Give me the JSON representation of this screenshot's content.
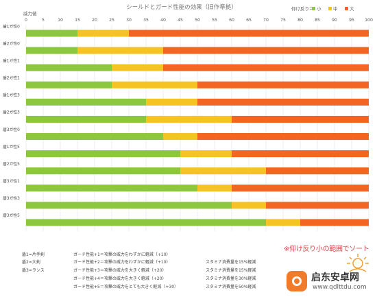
{
  "chart_data": {
    "type": "stacked-bar",
    "title": "シールドとガード性能の効果（旧作準拠）",
    "ylabel": "威力値",
    "xlim": [
      0,
      100
    ],
    "xticks": [
      0,
      5,
      10,
      15,
      20,
      25,
      30,
      35,
      40,
      45,
      50,
      55,
      60,
      65,
      70,
      75,
      80,
      85,
      90,
      95,
      100
    ],
    "grid": true,
    "legend_position": "top-right",
    "legend": {
      "title": "仰け反り＝",
      "items": [
        {
          "label": "小",
          "color": "#8dc63f"
        },
        {
          "label": "中",
          "color": "#f6c324"
        },
        {
          "label": "大",
          "color": "#f26522"
        }
      ]
    },
    "categories": [
      "盾1ガ性0",
      "盾2ガ性0",
      "盾1ガ性1",
      "盾2ガ性1",
      "盾1ガ性3",
      "盾2ガ性3",
      "盾3ガ性0",
      "盾1ガ性5",
      "盾2ガ性5",
      "盾3ガ性1",
      "盾3ガ性3",
      "盾3ガ性5"
    ],
    "series": [
      {
        "name": "小",
        "color": "#8dc63f",
        "values": [
          15,
          15,
          25,
          25,
          35,
          35,
          40,
          45,
          45,
          50,
          60,
          70
        ]
      },
      {
        "name": "中",
        "color": "#f6c324",
        "values": [
          15,
          25,
          15,
          25,
          15,
          25,
          10,
          15,
          25,
          10,
          10,
          10
        ]
      },
      {
        "name": "大",
        "color": "#f26522",
        "values": [
          70,
          60,
          60,
          50,
          50,
          40,
          50,
          40,
          30,
          40,
          30,
          20
        ]
      }
    ]
  },
  "notes": {
    "rows": [
      {
        "c1": "盾1=片手剣",
        "c2": "ガード性能+1＝攻撃の威力をわずかに軽減（+10）",
        "c3": ""
      },
      {
        "c1": "盾2=大剣",
        "c2": "ガード性能+2＝攻撃の威力をわずかに軽減（+10）",
        "c3": "スタミナ消費量を15%軽減"
      },
      {
        "c1": "盾3=ランス",
        "c2": "ガード性能+3＝攻撃の威力を大きく軽減（+20）",
        "c3": "スタミナ消費量を15%軽減"
      },
      {
        "c1": "",
        "c2": "ガード性能+4＝攻撃の威力を大きく軽減（+20）",
        "c3": "スタミナ消費量を30%軽減"
      },
      {
        "c1": "",
        "c2": "ガード性能+5＝攻撃の威力をとても大きく軽減（+30）",
        "c3": "スタミナ消費量を50%軽減"
      }
    ],
    "sort_note": "※仰け反り小の範囲でソート"
  },
  "watermark": {
    "name": "启东安卓网",
    "url": "www.qdlttdu.com"
  }
}
